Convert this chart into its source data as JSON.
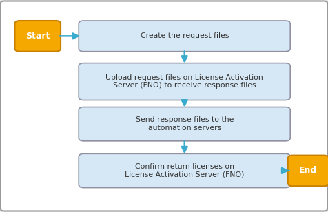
{
  "bg_color": "#e8e8e8",
  "border_color": "#999999",
  "box_fill": "#d6e8f5",
  "box_edge": "#9090a0",
  "start_end_fill": "#f5a800",
  "start_end_edge": "#c88000",
  "arrow_color": "#3aabcc",
  "text_color": "#333333",
  "start_label": "Start",
  "end_label": "End",
  "steps": [
    "Create the request files",
    "Upload request files on License Activation\nServer (FNO) to receive response files",
    "Send response files to the\nautomation servers",
    "Confirm return licenses on\nLicense Activation Server (FNO)"
  ],
  "fig_width": 4.76,
  "fig_height": 3.08,
  "dpi": 100
}
